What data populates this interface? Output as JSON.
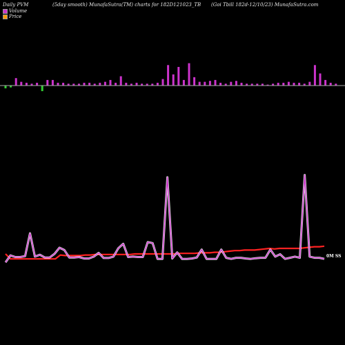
{
  "header": {
    "left": "Daily PVM",
    "middle": "(5day smooth) MunafaSutra(TM) charts for 182D121023_TB",
    "right": "(Goi  Tbill 182d-12/10/23) MunafaSutra.com"
  },
  "colors": {
    "volume_up": "#cc33cc",
    "volume_down": "#33cc33",
    "price_line": "#ff2222",
    "pvm_line": "#cc33cc",
    "pvm_glow": "#ffffff",
    "baseline": "#aaaaaa"
  },
  "chart_data": {
    "type": "line",
    "title": "",
    "xlabel": "",
    "ylabel": "",
    "legend": {
      "position": "top-left",
      "entries": [
        {
          "name": "Volume",
          "color": "#cc33cc"
        },
        {
          "name": "Price",
          "color": "#ff9900"
        }
      ]
    },
    "volume": [
      -3,
      -2,
      8,
      4,
      3,
      2,
      3,
      -6,
      6,
      6,
      3,
      3,
      2,
      2,
      2,
      3,
      3,
      2,
      3,
      4,
      6,
      3,
      10,
      3,
      2,
      3,
      2,
      2,
      2,
      3,
      7,
      22,
      12,
      20,
      6,
      24,
      9,
      4,
      4,
      5,
      6,
      3,
      2,
      4,
      5,
      3,
      2,
      2,
      2,
      2,
      1,
      2,
      3,
      3,
      4,
      3,
      3,
      2,
      4,
      22,
      13,
      6,
      3,
      2
    ],
    "pvm": [
      5,
      35,
      28,
      28,
      32,
      130,
      30,
      38,
      26,
      26,
      42,
      68,
      58,
      26,
      26,
      28,
      22,
      22,
      30,
      46,
      24,
      24,
      30,
      66,
      85,
      28,
      30,
      28,
      28,
      92,
      88,
      20,
      20,
      370,
      22,
      48,
      20,
      20,
      22,
      26,
      60,
      20,
      20,
      20,
      60,
      25,
      20,
      25,
      25,
      22,
      20,
      23,
      25,
      25,
      60,
      30,
      40,
      20,
      25,
      30,
      25,
      380,
      30,
      25,
      25,
      20
    ],
    "price": [
      100.0,
      99.1,
      99.1,
      99.1,
      99.1,
      99.1,
      99.1,
      99.1,
      99.1,
      99.1,
      99.1,
      99.8,
      99.7,
      99.7,
      99.7,
      99.7,
      99.8,
      99.8,
      99.9,
      99.9,
      99.9,
      99.9,
      99.9,
      99.9,
      99.9,
      99.9,
      100.0,
      100.0,
      100.0,
      100.0,
      100.0,
      100.0,
      100.0,
      100.0,
      100.0,
      100.1,
      100.1,
      100.1,
      100.1,
      100.2,
      100.2,
      100.2,
      100.3,
      100.3,
      100.4,
      100.5,
      100.6,
      100.6,
      100.7,
      100.7,
      100.7,
      100.8,
      100.9,
      101.0,
      100.9,
      101.0,
      101.0,
      101.0,
      101.0,
      101.0,
      101.1,
      101.2,
      101.3,
      101.3,
      101.4
    ],
    "last_value_label": "0M SS"
  }
}
